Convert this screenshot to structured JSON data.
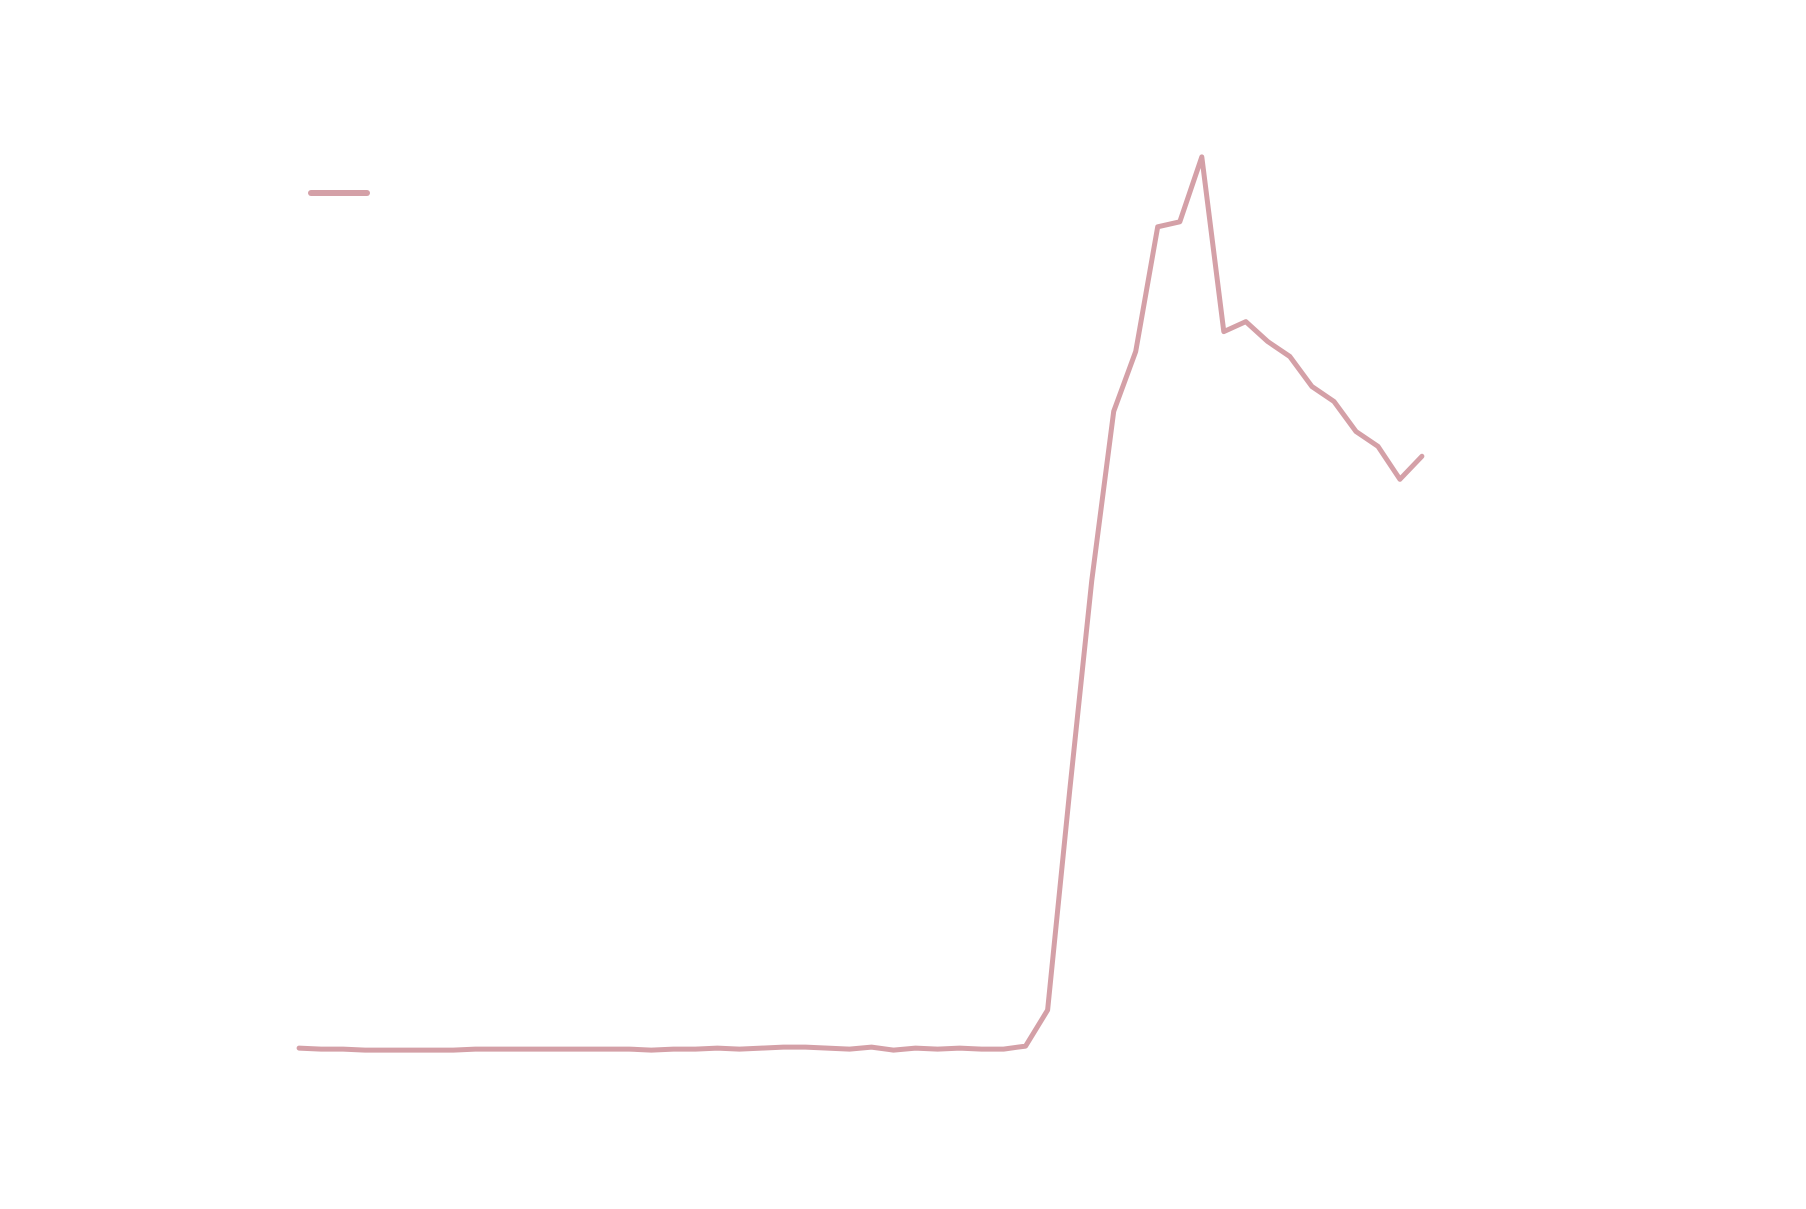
{
  "chart_data": {
    "type": "line",
    "title": "",
    "xlabel": "",
    "ylabel": "",
    "grid": false,
    "legend": "top-left",
    "x": [
      1,
      2,
      3,
      4,
      5,
      6,
      7,
      8,
      9,
      10,
      11,
      12,
      13,
      14,
      15,
      16,
      17,
      18,
      19,
      20,
      21,
      22,
      23,
      24,
      25,
      26,
      27,
      28,
      29,
      30,
      31,
      32,
      33,
      34,
      35,
      36,
      37,
      38,
      39,
      40,
      41,
      42,
      43,
      44,
      45,
      46,
      47,
      48,
      49,
      50,
      51,
      52
    ],
    "xlim": [
      -2.5,
      55.5
    ],
    "ylim": [
      -0.3,
      9.2
    ],
    "series": [
      {
        "name": "",
        "color": "#d4a0a7",
        "values": [
          0.02,
          0.01,
          0.01,
          0.0,
          0.0,
          0.0,
          0.0,
          0.0,
          0.01,
          0.01,
          0.01,
          0.01,
          0.01,
          0.01,
          0.01,
          0.01,
          0.0,
          0.01,
          0.01,
          0.02,
          0.01,
          0.02,
          0.03,
          0.03,
          0.02,
          0.01,
          0.03,
          0.0,
          0.02,
          0.01,
          0.02,
          0.01,
          0.01,
          0.04,
          0.4,
          2.6,
          4.7,
          6.4,
          7.0,
          8.25,
          8.3,
          8.95,
          7.2,
          7.3,
          7.1,
          6.95,
          6.65,
          6.5,
          6.2,
          6.05,
          5.72,
          5.95
        ]
      }
    ]
  }
}
